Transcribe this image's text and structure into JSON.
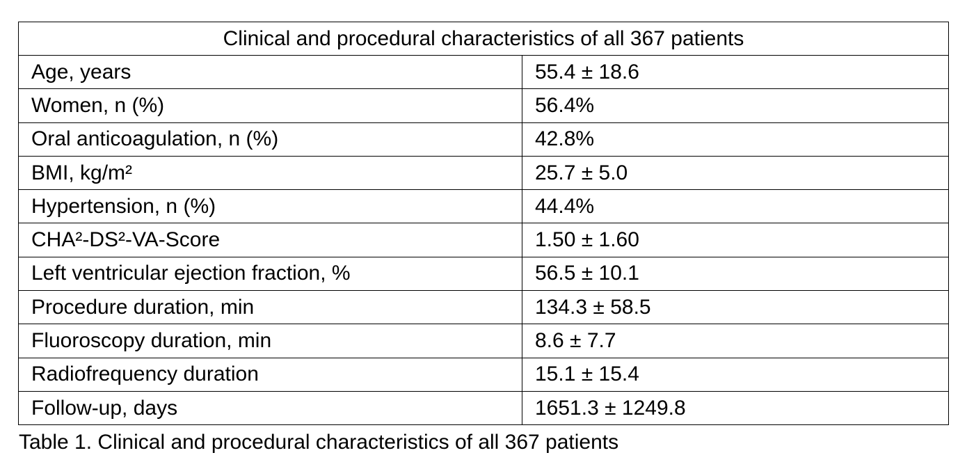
{
  "table": {
    "title": "Clinical and procedural characteristics of all 367 patients",
    "rows": [
      {
        "label": "Age, years",
        "value": "55.4 ± 18.6"
      },
      {
        "label": "Women, n (%)",
        "value": "56.4%"
      },
      {
        "label": "Oral anticoagulation, n (%)",
        "value": "42.8%"
      },
      {
        "label": "BMI, kg/m²",
        "value": "25.7 ± 5.0"
      },
      {
        "label": "Hypertension, n (%)",
        "value": "44.4%"
      },
      {
        "label": "CHA²-DS²-VA-Score",
        "value": "1.50 ± 1.60"
      },
      {
        "label": "Left ventricular ejection fraction, %",
        "value": "56.5 ± 10.1"
      },
      {
        "label": "Procedure duration, min",
        "value": "134.3 ± 58.5"
      },
      {
        "label": "Fluoroscopy duration, min",
        "value": "8.6 ± 7.7"
      },
      {
        "label": "Radiofrequency duration",
        "value": "15.1 ± 15.4"
      },
      {
        "label": "Follow-up, days",
        "value": "1651.3 ± 1249.8"
      }
    ]
  },
  "caption": "Table 1. Clinical and procedural characteristics of all 367 patients"
}
